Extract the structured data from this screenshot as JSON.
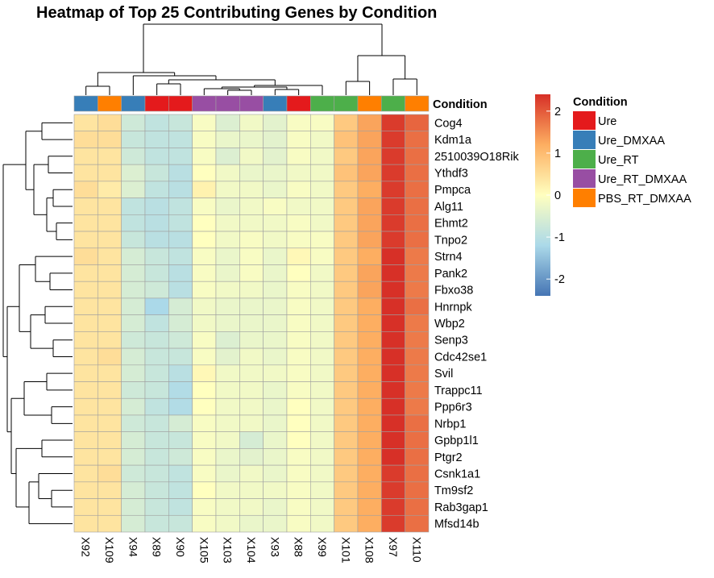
{
  "chart_data": {
    "type": "heatmap",
    "title": "Heatmap of Top 25 Contributing Genes by Condition",
    "columns": [
      "X92",
      "X109",
      "X94",
      "X89",
      "X90",
      "X105",
      "X103",
      "X104",
      "X93",
      "X88",
      "X99",
      "X101",
      "X108",
      "X97",
      "X110"
    ],
    "column_conditions": [
      "Ure_DMXAA",
      "PBS_RT_DMXAA",
      "Ure_DMXAA",
      "Ure",
      "Ure",
      "Ure_RT_DMXAA",
      "Ure_RT_DMXAA",
      "Ure_RT_DMXAA",
      "Ure_DMXAA",
      "Ure",
      "Ure_RT",
      "Ure_RT",
      "PBS_RT_DMXAA",
      "Ure_RT",
      "PBS_RT_DMXAA"
    ],
    "rows": [
      "Cog4",
      "Kdm1a",
      "2510039O18Rik",
      "Ythdf3",
      "Pmpca",
      "Alg11",
      "Ehmt2",
      "Tnpo2",
      "Strn4",
      "Pank2",
      "Fbxo38",
      "Hnrnpk",
      "Wbp2",
      "Senp3",
      "Cdc42se1",
      "Svil",
      "Trappc11",
      "Ppp6r3",
      "Nrbp1",
      "Gpbp1l1",
      "Ptgr2",
      "Csnk1a1",
      "Tm9sf2",
      "Rab3gap1",
      "Mfsd14b"
    ],
    "values": [
      [
        0.4,
        0.5,
        -0.7,
        -0.9,
        -0.8,
        -0.1,
        -0.5,
        -0.2,
        -0.4,
        -0.1,
        -0.1,
        0.8,
        1.3,
        2.3,
        1.9
      ],
      [
        0.5,
        0.5,
        -0.8,
        -0.9,
        -0.9,
        -0.1,
        -0.3,
        -0.3,
        -0.4,
        -0.1,
        -0.2,
        0.9,
        1.3,
        2.3,
        1.8
      ],
      [
        0.4,
        0.4,
        -0.7,
        -0.9,
        -0.9,
        -0.1,
        -0.5,
        -0.2,
        -0.4,
        -0.1,
        -0.2,
        0.8,
        1.3,
        2.3,
        1.8
      ],
      [
        0.4,
        0.4,
        -0.5,
        -0.8,
        -1.0,
        0.0,
        -0.2,
        -0.3,
        -0.3,
        -0.2,
        -0.2,
        0.9,
        1.3,
        2.3,
        1.8
      ],
      [
        0.5,
        0.3,
        -0.5,
        -0.9,
        -1.0,
        0.2,
        -0.2,
        -0.2,
        -0.3,
        -0.1,
        -0.2,
        0.8,
        1.2,
        2.3,
        1.8
      ],
      [
        0.4,
        0.4,
        -0.9,
        -1.0,
        -0.9,
        -0.1,
        -0.3,
        -0.2,
        -0.1,
        -0.2,
        -0.2,
        0.8,
        1.3,
        2.3,
        1.8
      ],
      [
        0.4,
        0.4,
        -0.9,
        -1.0,
        -0.9,
        0.0,
        -0.2,
        -0.2,
        -0.2,
        -0.1,
        -0.2,
        0.8,
        1.3,
        2.3,
        1.8
      ],
      [
        0.4,
        0.4,
        -0.8,
        -1.0,
        -1.0,
        0.0,
        -0.2,
        -0.1,
        -0.2,
        -0.1,
        -0.1,
        0.8,
        1.3,
        2.3,
        1.8
      ],
      [
        0.5,
        0.4,
        -0.6,
        -0.8,
        -0.9,
        -0.1,
        -0.3,
        -0.1,
        -0.3,
        0.1,
        -0.1,
        0.8,
        1.2,
        2.4,
        1.7
      ],
      [
        0.4,
        0.4,
        -0.6,
        -0.8,
        -1.0,
        -0.1,
        -0.3,
        -0.1,
        -0.3,
        0.0,
        -0.2,
        0.8,
        1.3,
        2.4,
        1.7
      ],
      [
        0.4,
        0.4,
        -0.6,
        -0.7,
        -1.0,
        -0.1,
        -0.2,
        -0.2,
        -0.3,
        -0.1,
        -0.2,
        0.8,
        1.3,
        2.4,
        1.7
      ],
      [
        0.4,
        0.4,
        -0.6,
        -1.2,
        -0.6,
        -0.2,
        -0.3,
        -0.3,
        -0.3,
        -0.1,
        -0.2,
        0.8,
        1.2,
        2.4,
        1.8
      ],
      [
        0.4,
        0.4,
        -0.6,
        -0.9,
        -0.6,
        -0.2,
        -0.3,
        -0.3,
        -0.3,
        -0.1,
        -0.2,
        0.8,
        1.2,
        2.4,
        1.7
      ],
      [
        0.4,
        0.4,
        -0.7,
        -0.8,
        -0.7,
        -0.1,
        -0.5,
        -0.3,
        -0.3,
        -0.1,
        -0.2,
        0.8,
        1.2,
        2.4,
        1.7
      ],
      [
        0.4,
        0.5,
        -0.6,
        -0.8,
        -0.8,
        -0.1,
        -0.4,
        -0.2,
        -0.3,
        -0.1,
        -0.2,
        0.8,
        1.2,
        2.4,
        1.7
      ],
      [
        0.4,
        0.4,
        -0.6,
        -0.8,
        -1.0,
        0.1,
        -0.2,
        -0.2,
        -0.2,
        -0.1,
        -0.2,
        0.8,
        1.2,
        2.4,
        1.7
      ],
      [
        0.4,
        0.4,
        -0.7,
        -0.8,
        -1.1,
        0.0,
        -0.2,
        -0.2,
        -0.3,
        -0.1,
        -0.2,
        0.8,
        1.2,
        2.4,
        1.7
      ],
      [
        0.4,
        0.4,
        -0.6,
        -0.9,
        -1.1,
        0.0,
        -0.2,
        -0.2,
        -0.3,
        0.0,
        -0.2,
        0.8,
        1.2,
        2.4,
        1.7
      ],
      [
        0.4,
        0.4,
        -0.7,
        -0.8,
        -0.6,
        -0.1,
        -0.2,
        -0.2,
        -0.3,
        0.0,
        -0.2,
        0.8,
        1.2,
        2.4,
        1.8
      ],
      [
        0.4,
        0.4,
        -0.6,
        -0.8,
        -0.8,
        -0.1,
        -0.2,
        -0.6,
        -0.3,
        0.0,
        -0.2,
        0.8,
        1.2,
        2.4,
        1.8
      ],
      [
        0.4,
        0.4,
        -0.6,
        -0.8,
        -0.7,
        -0.1,
        -0.3,
        -0.4,
        -0.3,
        -0.1,
        -0.2,
        0.8,
        1.2,
        2.4,
        1.8
      ],
      [
        0.4,
        0.5,
        -0.7,
        -0.8,
        -0.9,
        -0.1,
        -0.3,
        -0.2,
        -0.3,
        -0.1,
        -0.2,
        0.8,
        1.2,
        2.3,
        1.8
      ],
      [
        0.4,
        0.4,
        -0.6,
        -0.8,
        -0.9,
        0.0,
        -0.2,
        -0.2,
        -0.2,
        -0.1,
        -0.2,
        0.8,
        1.2,
        2.3,
        1.8
      ],
      [
        0.4,
        0.4,
        -0.6,
        -0.8,
        -0.9,
        -0.1,
        -0.2,
        -0.2,
        -0.3,
        -0.1,
        -0.2,
        0.8,
        1.2,
        2.3,
        1.8
      ],
      [
        0.4,
        0.4,
        -0.6,
        -0.8,
        -0.8,
        -0.1,
        -0.2,
        -0.3,
        -0.3,
        -0.1,
        -0.2,
        0.8,
        1.2,
        2.3,
        1.8
      ]
    ],
    "color_scale": {
      "stops": [
        {
          "value": -2.4,
          "color": "#4575b4"
        },
        {
          "value": -1.2,
          "color": "#abd9e9"
        },
        {
          "value": 0.0,
          "color": "#ffffbf"
        },
        {
          "value": 1.2,
          "color": "#fdae61"
        },
        {
          "value": 2.4,
          "color": "#d73027"
        }
      ],
      "ticks": [
        2,
        1,
        0,
        -1,
        -2
      ],
      "tick_labels": [
        "2",
        "1",
        "0",
        "-1",
        "-2"
      ]
    },
    "annotation": {
      "title": "Condition",
      "levels": [
        {
          "name": "Ure",
          "color": "#e41a1c"
        },
        {
          "name": "Ure_DMXAA",
          "color": "#377eb8"
        },
        {
          "name": "Ure_RT",
          "color": "#4daf4a"
        },
        {
          "name": "Ure_RT_DMXAA",
          "color": "#984ea3"
        },
        {
          "name": "PBS_RT_DMXAA",
          "color": "#ff7f00"
        }
      ]
    },
    "row_dendrogram": true,
    "column_dendrogram": true,
    "grid_color": "#a0a0a0"
  }
}
